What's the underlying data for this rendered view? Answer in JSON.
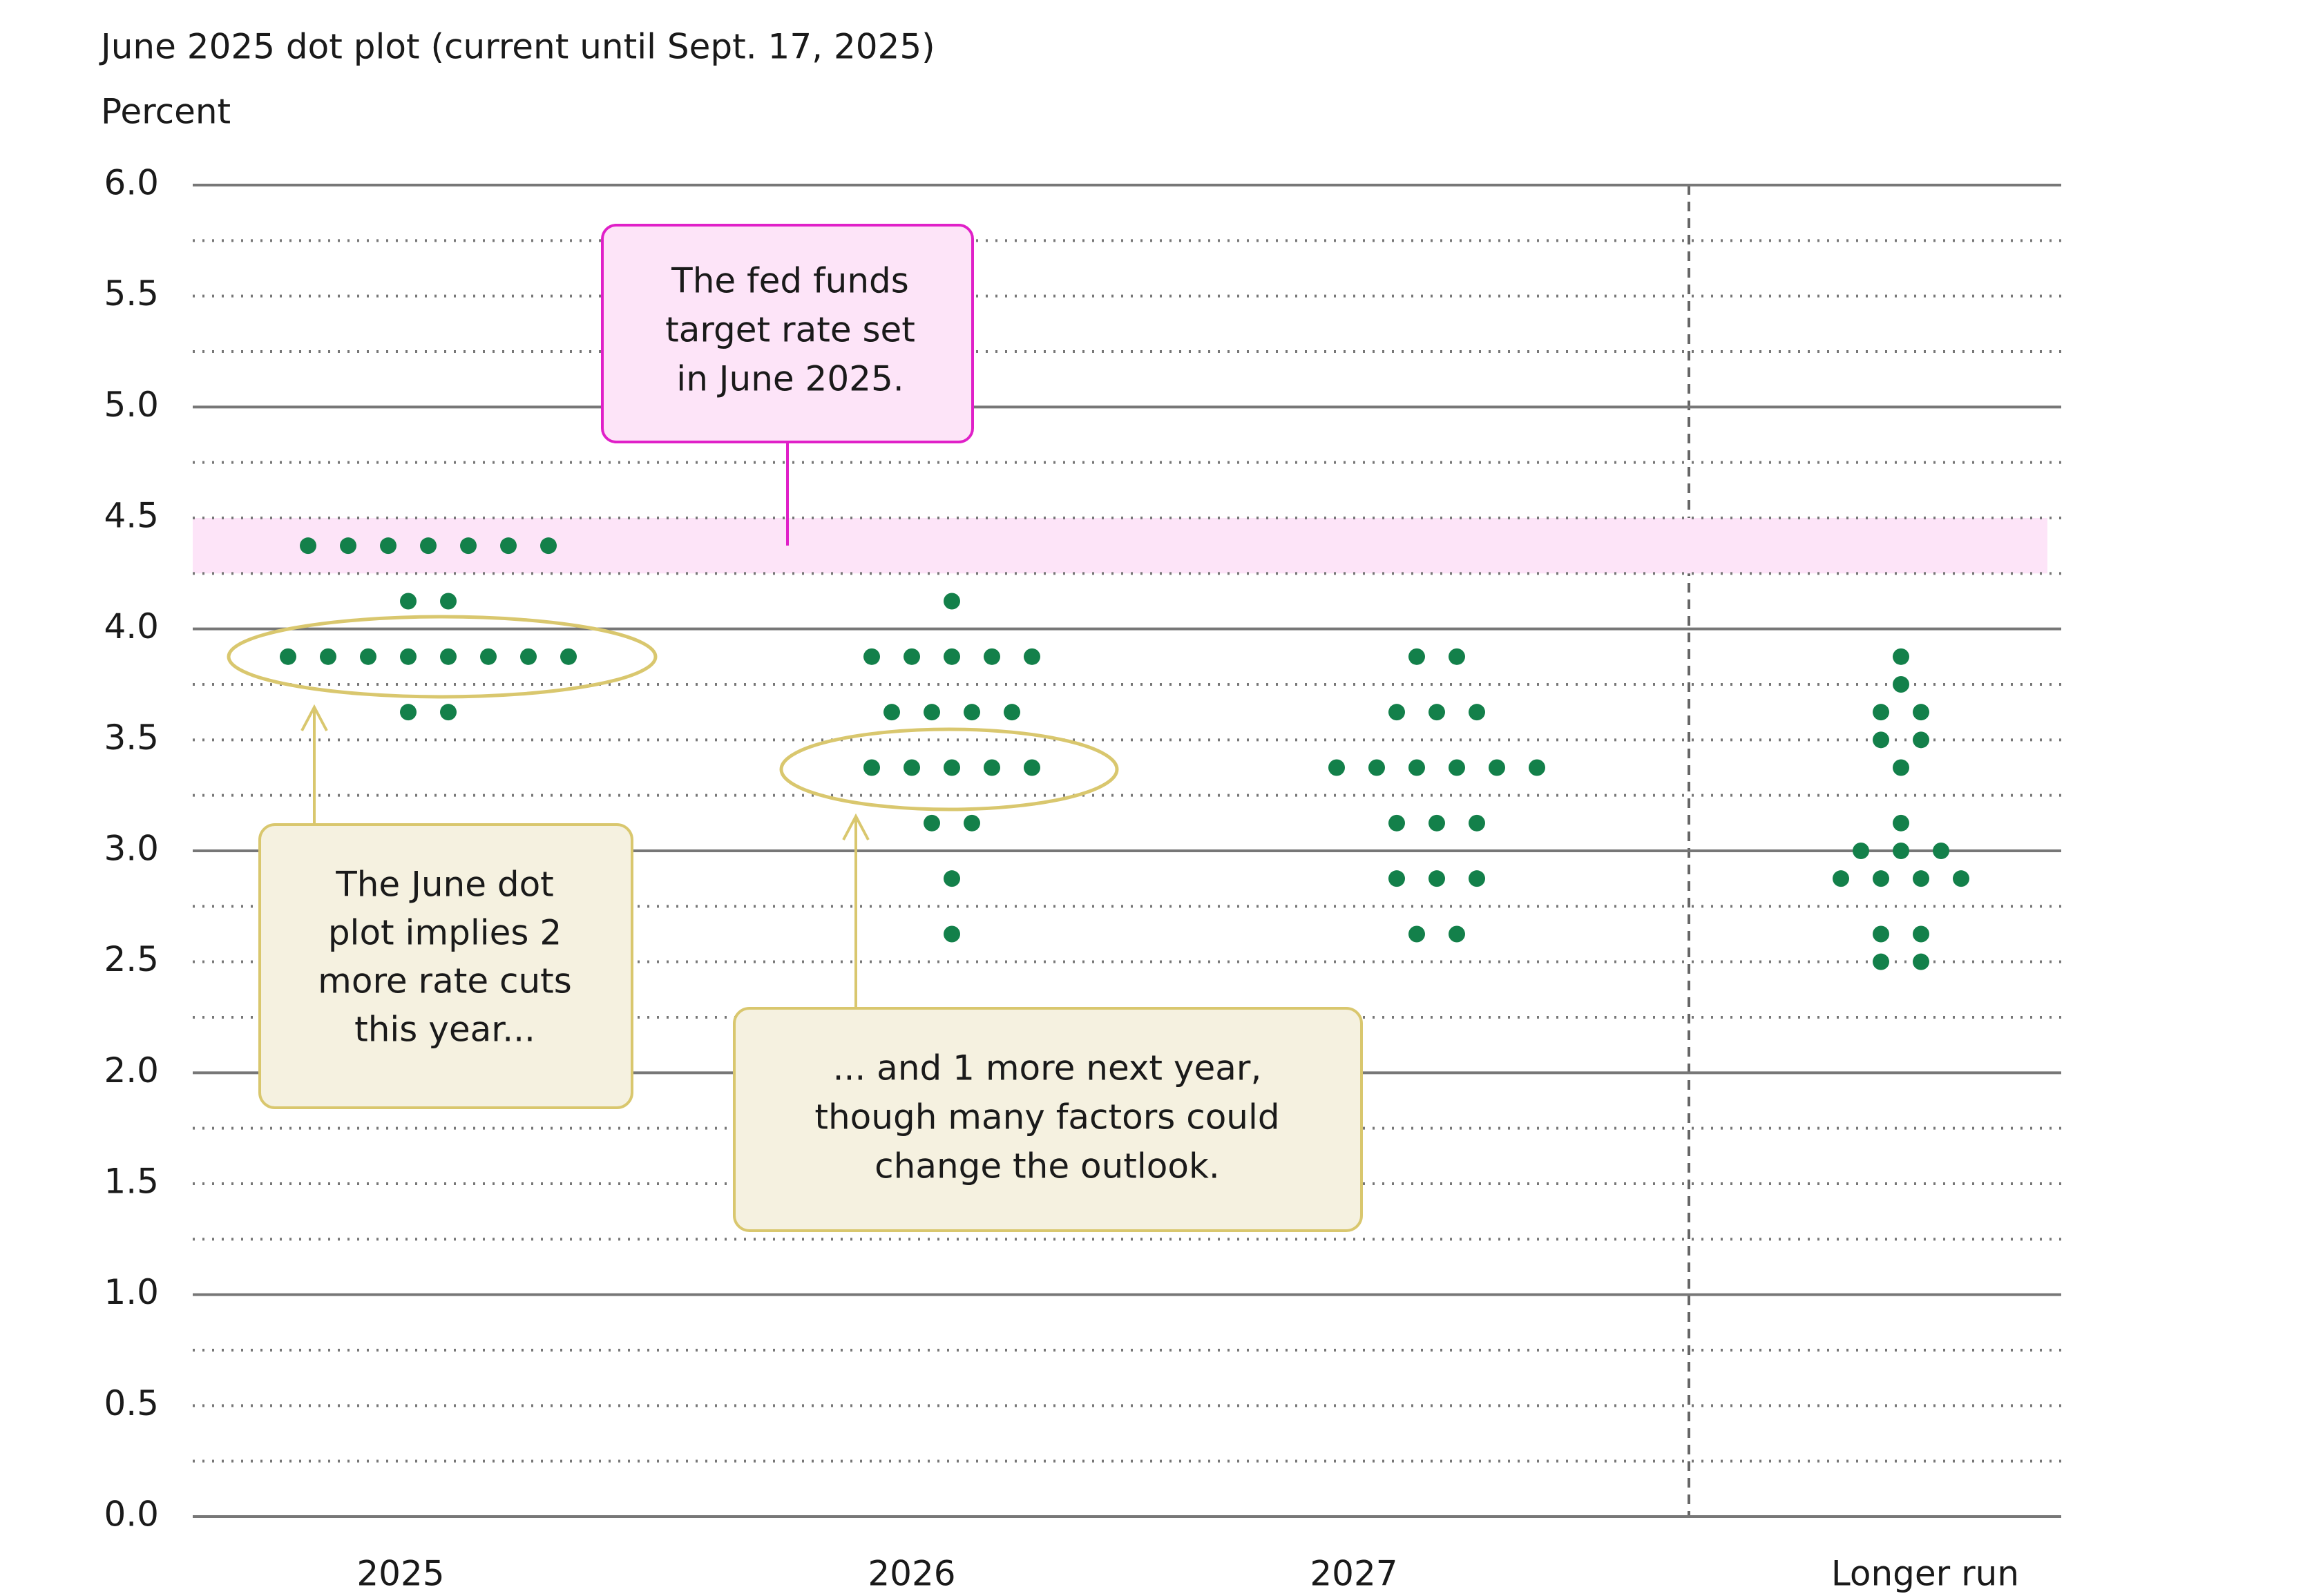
{
  "chart_data": {
    "type": "dot_plot",
    "title": "June 2025 dot plot (current until Sept. 17, 2025)",
    "y_label": "Percent",
    "categories": [
      "2025",
      "2026",
      "2027",
      "Longer run"
    ],
    "values": [
      [
        4.375,
        4.375,
        4.375,
        4.375,
        4.375,
        4.375,
        4.375,
        4.125,
        4.125,
        3.875,
        3.875,
        3.875,
        3.875,
        3.875,
        3.875,
        3.875,
        3.875,
        3.625,
        3.625
      ],
      [
        4.125,
        3.875,
        3.875,
        3.875,
        3.875,
        3.875,
        3.625,
        3.625,
        3.625,
        3.625,
        3.375,
        3.375,
        3.375,
        3.375,
        3.375,
        3.125,
        3.125,
        2.875,
        2.625
      ],
      [
        3.875,
        3.875,
        3.625,
        3.625,
        3.625,
        3.375,
        3.375,
        3.375,
        3.375,
        3.375,
        3.375,
        3.125,
        3.125,
        3.125,
        2.875,
        2.875,
        2.875,
        2.625,
        2.625
      ],
      [
        3.875,
        3.75,
        3.625,
        3.625,
        3.5,
        3.5,
        3.375,
        3.125,
        3.0,
        3.0,
        3.0,
        2.875,
        2.875,
        2.875,
        2.875,
        2.625,
        2.625,
        2.5,
        2.5
      ]
    ],
    "color": "#13804a",
    "ylim": [
      0,
      6
    ],
    "yticks": [
      {
        "value": 0,
        "label": "0.0"
      },
      {
        "value": 0.5,
        "label": "0.5"
      },
      {
        "value": 1,
        "label": "1.0"
      },
      {
        "value": 1.5,
        "label": "1.5"
      },
      {
        "value": 2,
        "label": "2.0"
      },
      {
        "value": 2.5,
        "label": "2.5"
      },
      {
        "value": 3,
        "label": "3.0"
      },
      {
        "value": 3.5,
        "label": "3.5"
      },
      {
        "value": 4,
        "label": "4.0"
      },
      {
        "value": 4.5,
        "label": "4.5"
      },
      {
        "value": 5,
        "label": "5.0"
      },
      {
        "value": 5.5,
        "label": "5.5"
      },
      {
        "value": 6,
        "label": "6.0"
      }
    ],
    "grid_major": [
      0,
      1,
      2,
      3,
      4,
      5,
      6
    ],
    "grid_minor": [
      0.25,
      0.5,
      0.75,
      1.25,
      1.5,
      1.75,
      2.25,
      2.5,
      2.75,
      3.25,
      3.5,
      3.75,
      4.25,
      4.5,
      4.75,
      5.25,
      5.5,
      5.75
    ],
    "target_range": [
      4.25,
      4.5
    ],
    "annotations": [
      {
        "lines": [
          "The fed funds",
          "target rate set",
          "in June 2025."
        ]
      },
      {
        "lines": [
          "The June dot",
          "plot implies 2",
          "more rate cuts",
          "this year..."
        ]
      },
      {
        "lines": [
          "... and 1 more next year,",
          "though many factors could",
          "change the outlook."
        ]
      }
    ]
  }
}
